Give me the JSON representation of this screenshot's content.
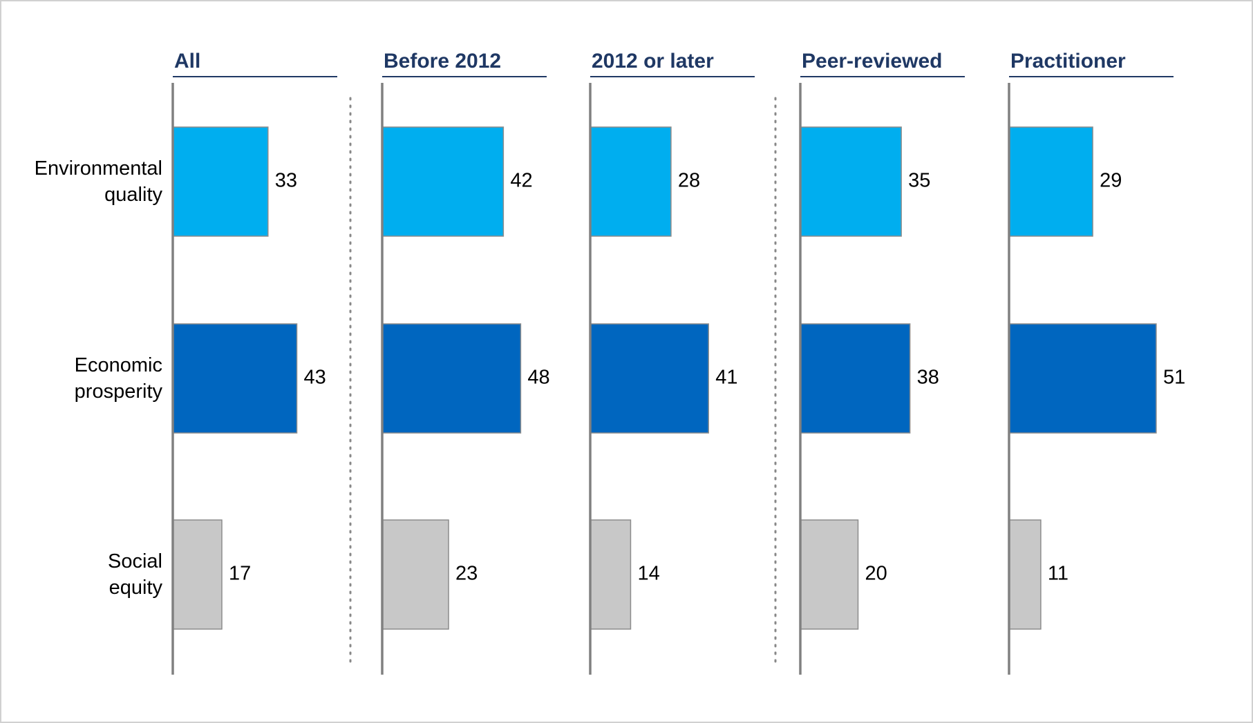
{
  "chart_data": {
    "type": "bar",
    "orientation": "horizontal",
    "categories": [
      "Environmental\nquality",
      "Economic\nprosperity",
      "Social\nequity"
    ],
    "colors": [
      "#00aeef",
      "#0066bf",
      "#c8c8c8"
    ],
    "xlim": [
      0,
      57
    ],
    "series": [
      {
        "name": "All",
        "values": [
          33,
          43,
          17
        ]
      },
      {
        "name": "Before 2012",
        "values": [
          42,
          48,
          23
        ]
      },
      {
        "name": "2012 or later",
        "values": [
          28,
          41,
          14
        ]
      },
      {
        "name": "Peer-reviewed",
        "values": [
          35,
          38,
          20
        ]
      },
      {
        "name": "Practitioner",
        "values": [
          29,
          51,
          11
        ]
      }
    ]
  }
}
